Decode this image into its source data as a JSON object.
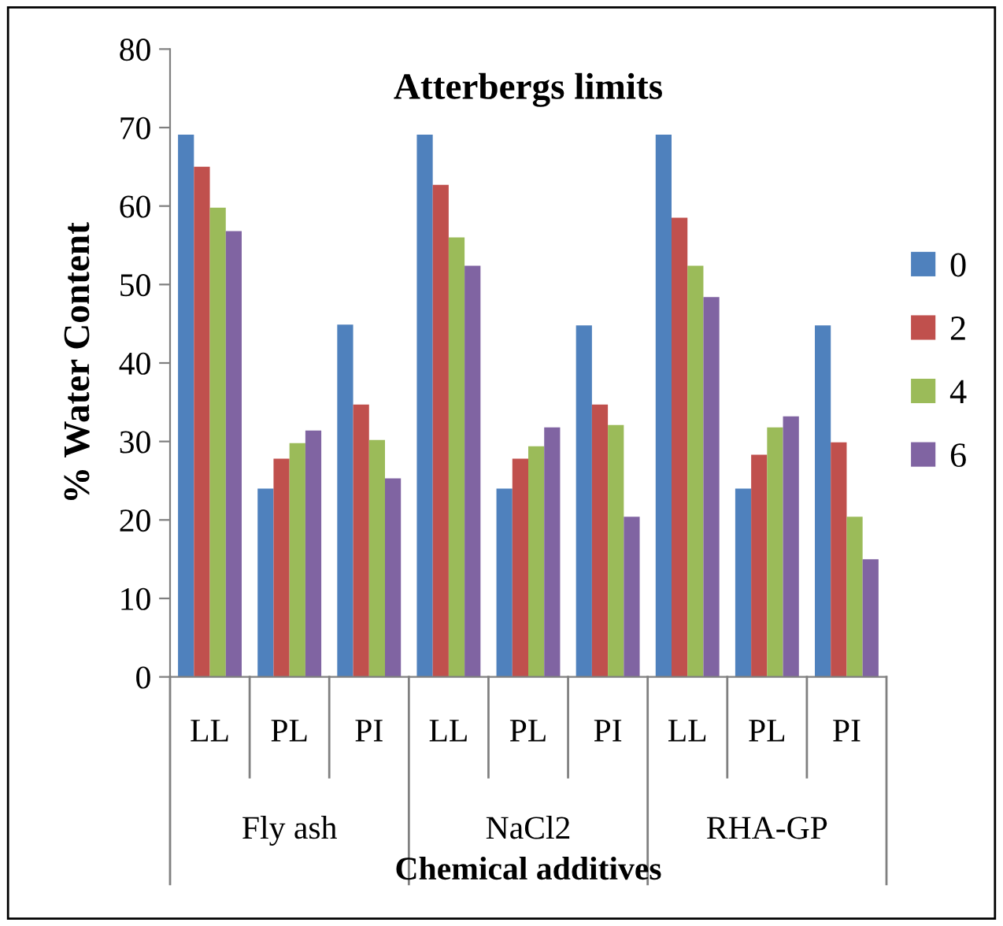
{
  "chart_data": {
    "type": "bar",
    "title": "Atterbergs limits",
    "xlabel": "Chemical additives",
    "ylabel": "% Water Content",
    "categories": [
      "LL",
      "PL",
      "PI",
      "LL",
      "PL",
      "PI",
      "LL",
      "PL",
      "PI"
    ],
    "annotations": [
      "Fly ash",
      "NaCl2",
      "RHA-GP"
    ],
    "series": [
      {
        "name": "0",
        "color": "#4f81bd",
        "values": [
          69.1,
          24.0,
          44.9,
          69.1,
          24.0,
          44.8,
          69.1,
          24.0,
          44.8
        ]
      },
      {
        "name": "2",
        "color": "#c0504d",
        "values": [
          65.0,
          27.8,
          34.7,
          62.7,
          27.8,
          34.7,
          58.5,
          28.3,
          29.9
        ]
      },
      {
        "name": "4",
        "color": "#9bbb59",
        "values": [
          59.8,
          29.8,
          30.2,
          56.0,
          29.4,
          32.1,
          52.4,
          31.8,
          20.4
        ]
      },
      {
        "name": "6",
        "color": "#8064a2",
        "values": [
          56.8,
          31.4,
          25.3,
          52.4,
          31.8,
          20.4,
          48.4,
          33.2,
          15.0
        ]
      }
    ],
    "ylim": [
      0,
      80
    ],
    "yticks": [
      0,
      10,
      20,
      30,
      40,
      50,
      60,
      70,
      80
    ],
    "grid": false,
    "legend": "right"
  }
}
